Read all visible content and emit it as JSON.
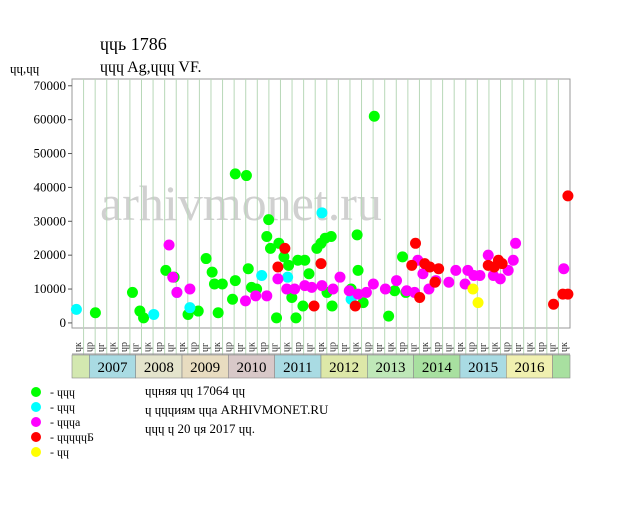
{
  "chart_data": {
    "type": "scatter",
    "title": "ɥɥь 1786",
    "subtitle": "ɥɥɥ Ag,ɥɥɥ VF.",
    "y_label": "ɥɥ,ɥɥ",
    "watermark": "arhivmonet.ru",
    "xlim": [
      2006.625,
      2017.375
    ],
    "ylim": [
      -1500,
      72000
    ],
    "yticks": [
      0,
      10000,
      20000,
      30000,
      40000,
      50000,
      60000,
      70000
    ],
    "xticks": [
      2007,
      2008,
      2009,
      2010,
      2011,
      2012,
      2013,
      2014,
      2015,
      2016,
      {
        "value": 2017,
        "label": null
      }
    ],
    "band_colors": [
      "#d3e8b0",
      "#a9dbe3",
      "#e4e4cc",
      "#e8dcc0",
      "#d8c8c8",
      "#a9dbe3",
      "#dde8a8",
      "#bfe8b8",
      "#a8e0a0",
      "#a9dbe3",
      "#f0f0b0",
      "#a8e0a0"
    ],
    "column_labels": [
      "ɥк",
      "ɥр",
      "ɥг",
      "ɥк",
      "ɥр",
      "ɥг",
      "ɥк",
      "ɥр",
      "ɥг",
      "ɥк",
      "ɥр",
      "ɥг",
      "ɥк",
      "ɥр",
      "ɥг",
      "ɥк",
      "ɥр",
      "ɥг",
      "ɥк",
      "ɥр",
      "ɥг",
      "ɥк",
      "ɥр",
      "ɥг",
      "ɥк",
      "ɥр",
      "ɥг",
      "ɥк",
      "ɥр",
      "ɥг",
      "ɥк",
      "ɥр",
      "ɥг",
      "ɥк",
      "ɥр",
      "ɥг",
      "ɥк",
      "ɥр",
      "ɥг",
      "ɥк",
      "ɥр",
      "ɥг",
      "ɥк"
    ],
    "series": [
      {
        "name": "- ɥɥɥ",
        "color": "#00ff00",
        "x": [
          2007.13,
          2007.93,
          2008.09,
          2008.17,
          2008.65,
          2008.83,
          2009.13,
          2009.35,
          2009.52,
          2009.65,
          2009.7,
          2009.78,
          2009.87,
          2010.09,
          2010.15,
          2010.15,
          2010.39,
          2010.43,
          2010.5,
          2010.61,
          2010.83,
          2010.87,
          2010.91,
          2011.04,
          2011.09,
          2011.2,
          2011.3,
          2011.37,
          2011.46,
          2011.5,
          2011.61,
          2011.65,
          2011.74,
          2011.91,
          2012.0,
          2012.09,
          2012.22,
          2012.24,
          2012.13,
          2012.65,
          2012.78,
          2012.8,
          2012.91,
          2013.15,
          2013.46,
          2013.59,
          2013.76,
          2013.83
        ],
        "values": [
          3000,
          9000,
          3500,
          1500,
          15500,
          13500,
          2500,
          3500,
          19000,
          15000,
          11500,
          3000,
          11500,
          7000,
          44000,
          12500,
          43500,
          16000,
          10500,
          10000,
          25500,
          30500,
          22000,
          1500,
          23500,
          19500,
          17000,
          7500,
          1500,
          18500,
          5000,
          18500,
          14500,
          22000,
          23500,
          25000,
          25500,
          5000,
          9000,
          10000,
          26000,
          15500,
          6000,
          61000,
          2000,
          9500,
          19500,
          9000
        ]
      },
      {
        "name": "- ɥɥɥ",
        "color": "#00ffff",
        "x": [
          2006.72,
          2008.39,
          2008.89,
          2009.17,
          2010.72,
          2011.28,
          2012.02,
          2012.65
        ],
        "values": [
          4000,
          2500,
          9000,
          4500,
          14000,
          13500,
          32500,
          7000
        ]
      },
      {
        "name": "- ɥɥɥа",
        "color": "#ff00ff",
        "x": [
          2008.72,
          2008.8,
          2008.89,
          2009.17,
          2010.37,
          2010.59,
          2010.83,
          2011.07,
          2011.26,
          2011.43,
          2011.65,
          2011.8,
          2012.02,
          2012.26,
          2012.41,
          2012.61,
          2012.8,
          2012.98,
          2013.13,
          2013.39,
          2013.63,
          2013.85,
          2014.02,
          2014.09,
          2014.2,
          2014.33,
          2014.48,
          2014.76,
          2014.91,
          2015.11,
          2015.17,
          2015.3,
          2015.43,
          2015.61,
          2015.72,
          2015.87,
          2016.04,
          2016.15,
          2016.2,
          2017.24
        ],
        "values": [
          23000,
          13500,
          9000,
          10000,
          6500,
          8000,
          8000,
          13000,
          10000,
          10000,
          11000,
          10500,
          11000,
          10000,
          13500,
          9500,
          8500,
          9000,
          11500,
          10000,
          12500,
          9500,
          9000,
          18500,
          14500,
          10000,
          12500,
          12000,
          15500,
          11500,
          15500,
          14000,
          14000,
          20000,
          14000,
          13000,
          15500,
          18500,
          23500,
          16000
        ]
      },
      {
        "name": "- ɥɥɥɥɥБ",
        "color": "#ff0000",
        "x": [
          2011.07,
          2011.22,
          2011.85,
          2012.0,
          2012.74,
          2013.96,
          2014.04,
          2014.13,
          2014.24,
          2014.35,
          2014.46,
          2014.54,
          2015.61,
          2015.74,
          2015.83,
          2015.91,
          2017.02,
          2017.22,
          2017.33,
          2017.33
        ],
        "values": [
          16500,
          22000,
          5000,
          17500,
          5000,
          17000,
          23500,
          7500,
          17500,
          16500,
          12000,
          16000,
          17000,
          16500,
          18500,
          17500,
          5500,
          8500,
          37500,
          8500
        ]
      },
      {
        "name": "- ɥɥ",
        "color": "#ffff00",
        "x": [
          2015.28,
          2015.39
        ],
        "values": [
          10000,
          6000
        ]
      }
    ],
    "notes": [
      "ɥɥняя ɥɥ 17064 ɥɥ",
      "ɥ ɥɥɥиям ɥɥа ARHIVMONET.RU",
      "ɥɥɥ ɥ 20 ɥя 2017 ɥɥ."
    ]
  }
}
